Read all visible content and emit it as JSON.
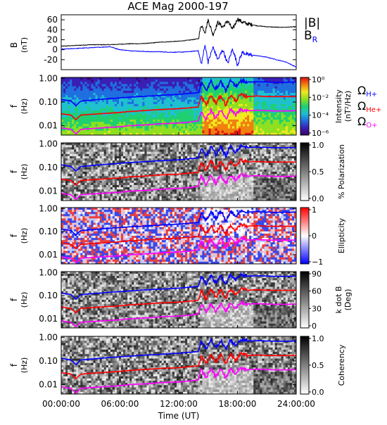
{
  "title": "ACE Mag 2000-197",
  "chart_data": [
    {
      "type": "line",
      "panel": "B",
      "ylabel": "B",
      "yunit": "(nT)",
      "ylim": [
        -40,
        70
      ],
      "yticks": [
        -20,
        0,
        20,
        40,
        60
      ],
      "xlim": [
        0,
        24
      ],
      "series": [
        {
          "name": "|B|",
          "color": "#000000",
          "x": [
            0,
            1,
            2,
            3,
            4,
            5,
            6,
            7,
            8,
            9,
            10,
            11,
            12,
            13,
            14,
            14.3,
            14.7,
            15,
            15.5,
            16,
            16.5,
            17,
            17.5,
            18,
            18.5,
            19,
            20,
            21,
            22,
            23,
            24
          ],
          "y": [
            7,
            8,
            9,
            10,
            10,
            10,
            11,
            12,
            12,
            13,
            15,
            16,
            17,
            19,
            22,
            50,
            35,
            60,
            30,
            55,
            45,
            58,
            40,
            62,
            55,
            52,
            48,
            46,
            45,
            45,
            46
          ]
        },
        {
          "name": "B_R",
          "color": "#0000ff",
          "x": [
            0,
            1,
            2,
            3,
            4,
            5,
            6,
            7,
            8,
            9,
            10,
            11,
            12,
            13,
            14,
            14.3,
            14.7,
            15,
            15.5,
            16,
            16.5,
            17,
            17.5,
            18,
            18.5,
            19,
            20,
            21,
            22,
            23,
            24
          ],
          "y": [
            1,
            2,
            3,
            4,
            5,
            6,
            0,
            -2,
            -3,
            -4,
            -4,
            -5,
            -5,
            -4,
            -2,
            -30,
            10,
            -25,
            5,
            -20,
            0,
            -28,
            2,
            -30,
            -5,
            -10,
            -12,
            -15,
            -20,
            -25,
            -35
          ]
        }
      ],
      "legend": [
        "|B|",
        "B_R"
      ]
    },
    {
      "type": "heatmap",
      "panel": "intensity",
      "ylabel": "f",
      "yunit": "(Hz)",
      "yticks": [
        "1.00",
        "0.10",
        "0.01"
      ],
      "colorbar": {
        "ticks": [
          "10⁰",
          "10⁻²",
          "10⁻⁴",
          "10⁻⁶"
        ],
        "label": "Intensity",
        "unit": "(nT²/Hz)",
        "colors": [
          "#3d0066",
          "#3a1fb5",
          "#1f6fe0",
          "#1fc0d0",
          "#1fd070",
          "#8ee020",
          "#f0e820",
          "#f08010",
          "#e01010"
        ]
      },
      "legend": [
        "Ω_H+",
        "Ω_He+",
        "Ω_O+"
      ]
    },
    {
      "type": "heatmap",
      "panel": "polarization",
      "ylabel": "f",
      "yunit": "(Hz)",
      "yticks": [
        "1.00",
        "0.10",
        "0.01"
      ],
      "colorbar": {
        "ticks": [
          "1.0",
          "0.5",
          "0.0"
        ],
        "label": "% Polarization",
        "colors": [
          "#ffffff",
          "#000000"
        ]
      }
    },
    {
      "type": "heatmap",
      "panel": "ellipticity",
      "ylabel": "f",
      "yunit": "(Hz)",
      "yticks": [
        "1.00",
        "0.10",
        "0.01"
      ],
      "colorbar": {
        "ticks": [
          "1",
          "0",
          "−1"
        ],
        "label": "Ellipticity",
        "colors": [
          "#ff0000",
          "#ffffff",
          "#0000ff"
        ]
      }
    },
    {
      "type": "heatmap",
      "panel": "kdotb",
      "ylabel": "f",
      "yunit": "(Hz)",
      "yticks": [
        "1.00",
        "0.10",
        "0.01"
      ],
      "colorbar": {
        "ticks": [
          "90",
          "60",
          "30",
          "0"
        ],
        "label": "k dot B",
        "unit": "(Deg)",
        "colors": [
          "#ffffff",
          "#000000"
        ]
      }
    },
    {
      "type": "heatmap",
      "panel": "coherency",
      "ylabel": "f",
      "yunit": "(Hz)",
      "yticks": [
        "1.00",
        "0.10",
        "0.01"
      ],
      "colorbar": {
        "ticks": [
          "1.0",
          "0.5",
          "0.0"
        ],
        "label": "Coherency",
        "colors": [
          "#ffffff",
          "#000000"
        ]
      }
    }
  ],
  "gyro_lines": {
    "x": [
      0,
      1,
      1.5,
      2,
      3,
      4,
      5,
      6,
      7,
      8,
      9,
      10,
      11,
      12,
      13,
      14,
      14.3,
      14.8,
      15.3,
      15.8,
      16.3,
      16.8,
      17.3,
      17.8,
      18.3,
      19,
      20,
      21,
      22,
      23,
      24
    ],
    "H": [
      0.13,
      0.11,
      0.07,
      0.11,
      0.12,
      0.13,
      0.14,
      0.15,
      0.16,
      0.17,
      0.18,
      0.19,
      0.2,
      0.21,
      0.23,
      0.25,
      0.7,
      0.3,
      0.75,
      0.35,
      0.75,
      0.3,
      0.8,
      0.45,
      0.8,
      0.7,
      0.72,
      0.7,
      0.68,
      0.68,
      0.7
    ],
    "He": [
      0.032,
      0.028,
      0.018,
      0.028,
      0.03,
      0.032,
      0.034,
      0.036,
      0.04,
      0.042,
      0.045,
      0.048,
      0.05,
      0.052,
      0.057,
      0.062,
      0.17,
      0.075,
      0.19,
      0.085,
      0.19,
      0.075,
      0.2,
      0.11,
      0.2,
      0.17,
      0.18,
      0.17,
      0.17,
      0.17,
      0.17
    ],
    "O": [
      0.008,
      0.007,
      0.0045,
      0.007,
      0.0075,
      0.008,
      0.0085,
      0.009,
      0.01,
      0.0105,
      0.011,
      0.012,
      0.0125,
      0.013,
      0.014,
      0.016,
      0.043,
      0.019,
      0.047,
      0.021,
      0.047,
      0.019,
      0.05,
      0.028,
      0.05,
      0.043,
      0.045,
      0.043,
      0.042,
      0.042,
      0.043
    ],
    "colors": {
      "H": "#0000ff",
      "He": "#ff0000",
      "O": "#ff00ff"
    }
  },
  "xaxis": {
    "ticks": [
      "00:00:00",
      "06:00:00",
      "12:00:00",
      "18:00:00",
      "24:00:00"
    ],
    "tick_values": [
      0,
      6,
      12,
      18,
      24
    ],
    "label": "Time (UT)"
  }
}
